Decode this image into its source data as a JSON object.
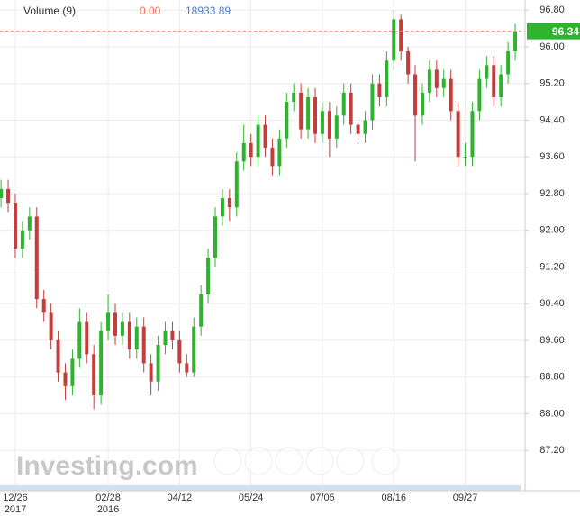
{
  "chart_data": {
    "type": "candlestick",
    "legend": {
      "indicator": "Volume (9)",
      "value": "0.00",
      "value2": "18933.89"
    },
    "watermark": "Investing.com",
    "last_price": 96.34,
    "up_color": "#2fb32f",
    "down_color": "#c43c3c",
    "grid": true,
    "xlim": [
      -0.14,
      73.38
    ],
    "xticks": [
      {
        "value": 2,
        "label": "12/26",
        "year": "2017"
      },
      {
        "value": 15,
        "label": "02/28",
        "year": "2016"
      },
      {
        "value": 25,
        "label": "04/12"
      },
      {
        "value": 35,
        "label": "05/24"
      },
      {
        "value": 45,
        "label": "07/05"
      },
      {
        "value": 55,
        "label": "08/16"
      },
      {
        "value": 65,
        "label": "09/27"
      }
    ],
    "ylim": [
      86.32,
      97.02
    ],
    "yticks": [
      {
        "value": 96.8,
        "label": "96.80"
      },
      {
        "value": 96.0,
        "label": "96.00"
      },
      {
        "value": 95.2,
        "label": "95.20"
      },
      {
        "value": 94.4,
        "label": "94.40"
      },
      {
        "value": 93.6,
        "label": "93.60"
      },
      {
        "value": 92.8,
        "label": "92.80"
      },
      {
        "value": 92.0,
        "label": "92.00"
      },
      {
        "value": 91.2,
        "label": "91.20"
      },
      {
        "value": 90.4,
        "label": "90.40"
      },
      {
        "value": 89.6,
        "label": "89.60"
      },
      {
        "value": 88.8,
        "label": "88.80"
      },
      {
        "value": 88.0,
        "label": "88.00"
      },
      {
        "value": 87.2,
        "label": "87.20"
      }
    ],
    "open": [
      92.7,
      92.9,
      92.6,
      91.6,
      92.0,
      92.3,
      90.5,
      90.2,
      89.6,
      88.9,
      88.6,
      89.2,
      90.0,
      89.3,
      88.4,
      89.8,
      90.2,
      89.7,
      90.0,
      89.4,
      89.9,
      89.1,
      88.7,
      89.5,
      89.8,
      89.6,
      89.1,
      88.9,
      89.9,
      90.6,
      91.4,
      92.3,
      92.7,
      92.5,
      93.5,
      93.9,
      93.6,
      94.3,
      93.8,
      93.4,
      94.0,
      94.8,
      95.0,
      94.2,
      94.9,
      94.1,
      94.6,
      94.0,
      94.5,
      95.0,
      94.3,
      94.1,
      94.4,
      95.2,
      94.9,
      95.7,
      96.6,
      95.9,
      95.4,
      94.5,
      95.0,
      95.5,
      95.1,
      95.3,
      94.6,
      93.6,
      93.6,
      94.6,
      95.3,
      95.6,
      94.9,
      95.4,
      95.9
    ],
    "high": [
      93.1,
      93.1,
      92.8,
      92.2,
      92.5,
      92.5,
      90.7,
      90.4,
      89.8,
      89.1,
      89.4,
      90.3,
      90.2,
      89.5,
      90.0,
      90.6,
      90.4,
      90.2,
      90.2,
      90.1,
      90.1,
      89.3,
      89.7,
      90.0,
      90.0,
      89.8,
      89.3,
      90.1,
      90.8,
      91.6,
      92.5,
      92.9,
      92.9,
      93.7,
      94.3,
      94.1,
      94.5,
      94.5,
      94.0,
      94.2,
      95.0,
      95.2,
      95.2,
      95.1,
      95.1,
      94.8,
      94.8,
      94.7,
      95.2,
      95.2,
      94.5,
      94.6,
      95.4,
      95.4,
      95.9,
      96.8,
      96.7,
      96.0,
      95.6,
      95.2,
      95.7,
      95.7,
      95.5,
      95.5,
      94.8,
      93.9,
      94.8,
      95.5,
      95.8,
      95.8,
      95.6,
      96.1,
      96.5
    ],
    "low": [
      92.5,
      92.4,
      91.4,
      91.4,
      91.8,
      90.3,
      90.0,
      89.4,
      88.7,
      88.3,
      88.4,
      89.0,
      89.1,
      88.1,
      88.2,
      89.6,
      89.5,
      89.5,
      89.2,
      89.2,
      88.9,
      88.4,
      88.5,
      89.3,
      89.4,
      88.9,
      88.8,
      88.8,
      89.7,
      90.4,
      91.2,
      92.1,
      92.2,
      92.3,
      93.3,
      93.4,
      93.4,
      93.6,
      93.2,
      93.2,
      93.8,
      94.6,
      94.0,
      94.0,
      93.9,
      93.9,
      93.6,
      93.8,
      94.3,
      94.1,
      93.9,
      93.9,
      94.2,
      94.7,
      94.7,
      95.5,
      95.7,
      95.2,
      93.5,
      94.3,
      94.8,
      94.9,
      94.9,
      94.4,
      93.4,
      93.4,
      93.4,
      94.4,
      95.1,
      94.7,
      94.7,
      95.2,
      95.7
    ],
    "close": [
      92.9,
      92.6,
      91.6,
      92.0,
      92.3,
      90.5,
      90.2,
      89.6,
      88.9,
      88.6,
      89.2,
      90.0,
      89.3,
      88.4,
      89.8,
      90.2,
      89.7,
      90.0,
      89.4,
      89.9,
      89.1,
      88.7,
      89.5,
      89.8,
      89.6,
      89.1,
      88.9,
      89.9,
      90.6,
      91.4,
      92.3,
      92.7,
      92.5,
      93.5,
      93.9,
      93.6,
      94.3,
      93.8,
      93.4,
      94.0,
      94.8,
      95.0,
      94.2,
      94.9,
      94.1,
      94.6,
      94.0,
      94.5,
      95.0,
      94.3,
      94.1,
      94.4,
      95.2,
      94.9,
      95.7,
      96.6,
      95.9,
      95.4,
      94.5,
      95.0,
      95.5,
      95.1,
      95.3,
      94.6,
      93.6,
      93.6,
      94.6,
      95.3,
      95.6,
      94.9,
      95.4,
      95.9,
      96.34
    ]
  }
}
